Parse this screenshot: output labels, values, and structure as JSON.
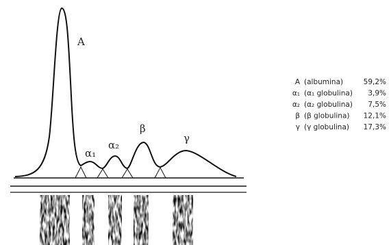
{
  "peaks": [
    {
      "label": "A"
    },
    {
      "label": "α₁"
    },
    {
      "label": "α₂"
    },
    {
      "label": "β"
    },
    {
      "label": "γ"
    }
  ],
  "legend": [
    [
      "A",
      "(albumina)",
      "59,2%"
    ],
    [
      "α₁",
      "(α₁ globulina)",
      "3,9%"
    ],
    [
      "α₂",
      "(α₂ globulina)",
      "7,5%"
    ],
    [
      "β",
      "(β globulina)",
      "12,1%"
    ],
    [
      "γ",
      "(γ globulina)",
      "17,3%"
    ]
  ]
}
